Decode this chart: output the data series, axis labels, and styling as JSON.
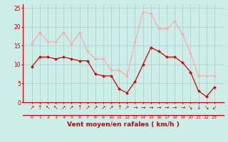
{
  "x": [
    0,
    1,
    2,
    3,
    4,
    5,
    6,
    7,
    8,
    9,
    10,
    11,
    12,
    13,
    14,
    15,
    16,
    17,
    18,
    19,
    20,
    21,
    22,
    23
  ],
  "wind_avg": [
    9.5,
    12,
    12,
    11.5,
    12,
    11.5,
    11,
    11,
    7.5,
    7,
    7,
    3.5,
    2.5,
    5.5,
    10,
    14.5,
    13.5,
    12,
    12,
    10.5,
    8,
    3,
    1.5,
    4
  ],
  "wind_gust": [
    15.5,
    18.5,
    16,
    16,
    18.5,
    15.5,
    18.5,
    13.5,
    11.5,
    11.5,
    8.5,
    8.5,
    7,
    16,
    24,
    23.5,
    19.5,
    19.5,
    21.5,
    18,
    13,
    7,
    7,
    7
  ],
  "avg_color": "#dd0000",
  "gust_color": "#ffaaaa",
  "bg_color": "#cceee8",
  "grid_color": "#aacccc",
  "xlabel": "Vent moyen/en rafales ( km/h )",
  "xlabel_color": "#cc0000",
  "tick_color": "#cc0000",
  "ylim": [
    0,
    26
  ],
  "yticks": [
    0,
    5,
    10,
    15,
    20,
    25
  ],
  "arrow_labels": [
    "↗",
    "↑",
    "↖",
    "↖",
    "↗",
    "↗",
    "↑",
    "↗",
    "↗",
    "↗",
    "↗",
    "↑",
    "↗",
    "→",
    "→",
    "→",
    "→",
    "→",
    "→",
    "→",
    "↘",
    "↓",
    "↘",
    "↙"
  ]
}
